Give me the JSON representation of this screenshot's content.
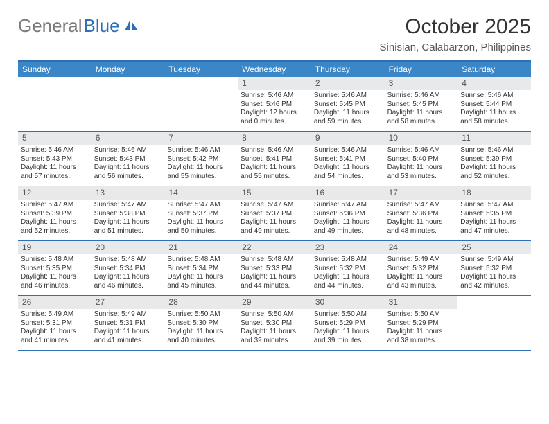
{
  "brand": {
    "word1": "General",
    "word2": "Blue"
  },
  "colors": {
    "accent": "#3b86c7",
    "accent_border": "#2f6fb3",
    "daynum_bg": "#e7e9eb",
    "text": "#333333"
  },
  "title": "October 2025",
  "subtitle": "Sinisian, Calabarzon, Philippines",
  "weekdays": [
    "Sunday",
    "Monday",
    "Tuesday",
    "Wednesday",
    "Thursday",
    "Friday",
    "Saturday"
  ],
  "weeks": [
    [
      null,
      null,
      null,
      {
        "n": "1",
        "sr": "5:46 AM",
        "ss": "5:46 PM",
        "dl": "Daylight: 12 hours and 0 minutes."
      },
      {
        "n": "2",
        "sr": "5:46 AM",
        "ss": "5:45 PM",
        "dl": "Daylight: 11 hours and 59 minutes."
      },
      {
        "n": "3",
        "sr": "5:46 AM",
        "ss": "5:45 PM",
        "dl": "Daylight: 11 hours and 58 minutes."
      },
      {
        "n": "4",
        "sr": "5:46 AM",
        "ss": "5:44 PM",
        "dl": "Daylight: 11 hours and 58 minutes."
      }
    ],
    [
      {
        "n": "5",
        "sr": "5:46 AM",
        "ss": "5:43 PM",
        "dl": "Daylight: 11 hours and 57 minutes."
      },
      {
        "n": "6",
        "sr": "5:46 AM",
        "ss": "5:43 PM",
        "dl": "Daylight: 11 hours and 56 minutes."
      },
      {
        "n": "7",
        "sr": "5:46 AM",
        "ss": "5:42 PM",
        "dl": "Daylight: 11 hours and 55 minutes."
      },
      {
        "n": "8",
        "sr": "5:46 AM",
        "ss": "5:41 PM",
        "dl": "Daylight: 11 hours and 55 minutes."
      },
      {
        "n": "9",
        "sr": "5:46 AM",
        "ss": "5:41 PM",
        "dl": "Daylight: 11 hours and 54 minutes."
      },
      {
        "n": "10",
        "sr": "5:46 AM",
        "ss": "5:40 PM",
        "dl": "Daylight: 11 hours and 53 minutes."
      },
      {
        "n": "11",
        "sr": "5:46 AM",
        "ss": "5:39 PM",
        "dl": "Daylight: 11 hours and 52 minutes."
      }
    ],
    [
      {
        "n": "12",
        "sr": "5:47 AM",
        "ss": "5:39 PM",
        "dl": "Daylight: 11 hours and 52 minutes."
      },
      {
        "n": "13",
        "sr": "5:47 AM",
        "ss": "5:38 PM",
        "dl": "Daylight: 11 hours and 51 minutes."
      },
      {
        "n": "14",
        "sr": "5:47 AM",
        "ss": "5:37 PM",
        "dl": "Daylight: 11 hours and 50 minutes."
      },
      {
        "n": "15",
        "sr": "5:47 AM",
        "ss": "5:37 PM",
        "dl": "Daylight: 11 hours and 49 minutes."
      },
      {
        "n": "16",
        "sr": "5:47 AM",
        "ss": "5:36 PM",
        "dl": "Daylight: 11 hours and 49 minutes."
      },
      {
        "n": "17",
        "sr": "5:47 AM",
        "ss": "5:36 PM",
        "dl": "Daylight: 11 hours and 48 minutes."
      },
      {
        "n": "18",
        "sr": "5:47 AM",
        "ss": "5:35 PM",
        "dl": "Daylight: 11 hours and 47 minutes."
      }
    ],
    [
      {
        "n": "19",
        "sr": "5:48 AM",
        "ss": "5:35 PM",
        "dl": "Daylight: 11 hours and 46 minutes."
      },
      {
        "n": "20",
        "sr": "5:48 AM",
        "ss": "5:34 PM",
        "dl": "Daylight: 11 hours and 46 minutes."
      },
      {
        "n": "21",
        "sr": "5:48 AM",
        "ss": "5:34 PM",
        "dl": "Daylight: 11 hours and 45 minutes."
      },
      {
        "n": "22",
        "sr": "5:48 AM",
        "ss": "5:33 PM",
        "dl": "Daylight: 11 hours and 44 minutes."
      },
      {
        "n": "23",
        "sr": "5:48 AM",
        "ss": "5:32 PM",
        "dl": "Daylight: 11 hours and 44 minutes."
      },
      {
        "n": "24",
        "sr": "5:49 AM",
        "ss": "5:32 PM",
        "dl": "Daylight: 11 hours and 43 minutes."
      },
      {
        "n": "25",
        "sr": "5:49 AM",
        "ss": "5:32 PM",
        "dl": "Daylight: 11 hours and 42 minutes."
      }
    ],
    [
      {
        "n": "26",
        "sr": "5:49 AM",
        "ss": "5:31 PM",
        "dl": "Daylight: 11 hours and 41 minutes."
      },
      {
        "n": "27",
        "sr": "5:49 AM",
        "ss": "5:31 PM",
        "dl": "Daylight: 11 hours and 41 minutes."
      },
      {
        "n": "28",
        "sr": "5:50 AM",
        "ss": "5:30 PM",
        "dl": "Daylight: 11 hours and 40 minutes."
      },
      {
        "n": "29",
        "sr": "5:50 AM",
        "ss": "5:30 PM",
        "dl": "Daylight: 11 hours and 39 minutes."
      },
      {
        "n": "30",
        "sr": "5:50 AM",
        "ss": "5:29 PM",
        "dl": "Daylight: 11 hours and 39 minutes."
      },
      {
        "n": "31",
        "sr": "5:50 AM",
        "ss": "5:29 PM",
        "dl": "Daylight: 11 hours and 38 minutes."
      },
      null
    ]
  ],
  "labels": {
    "sunrise": "Sunrise:",
    "sunset": "Sunset:"
  }
}
